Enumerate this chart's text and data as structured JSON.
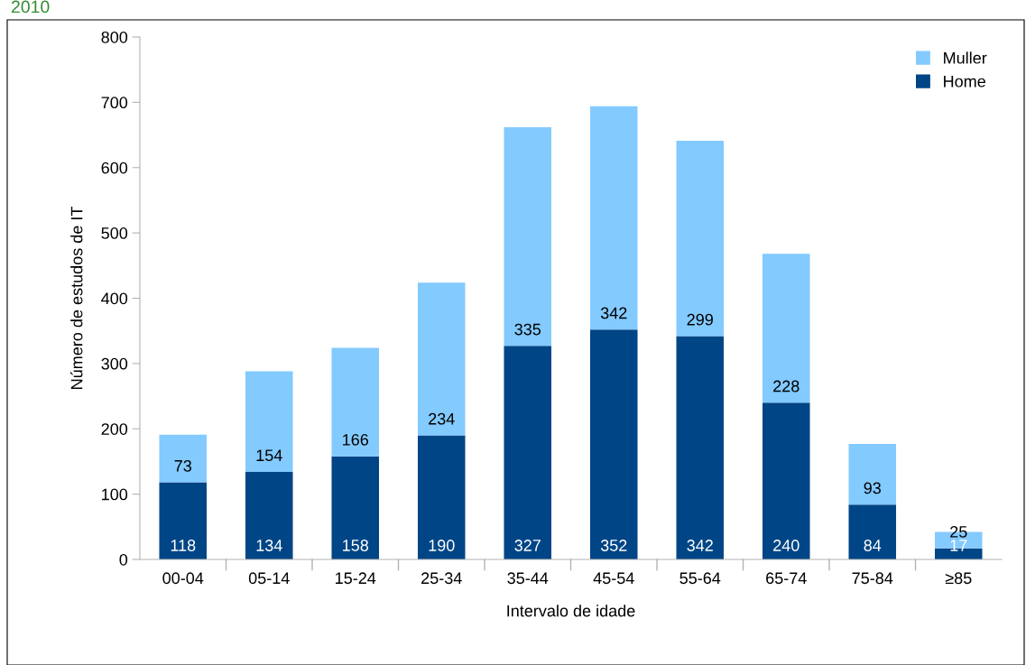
{
  "chart_data": {
    "type": "bar",
    "title": "2010",
    "xlabel": "Intervalo de idade",
    "ylabel": "Número de estudos de IT",
    "categories": [
      "00-04",
      "05-14",
      "15-24",
      "25-34",
      "35-44",
      "45-54",
      "55-64",
      "65-74",
      "75-84",
      "≥85"
    ],
    "stacked": true,
    "data_labels": true,
    "legend": "top right",
    "grid": false,
    "ylim": [
      0,
      800
    ],
    "yticks": [
      0,
      100,
      200,
      300,
      400,
      500,
      600,
      700,
      800
    ],
    "series": [
      {
        "name": "Home",
        "color": "#004586",
        "values": [
          118,
          134,
          158,
          190,
          327,
          352,
          342,
          240,
          84,
          17
        ]
      },
      {
        "name": "Muller",
        "color": "#83caff",
        "values": [
          73,
          154,
          166,
          234,
          335,
          342,
          299,
          228,
          93,
          25
        ]
      }
    ]
  }
}
